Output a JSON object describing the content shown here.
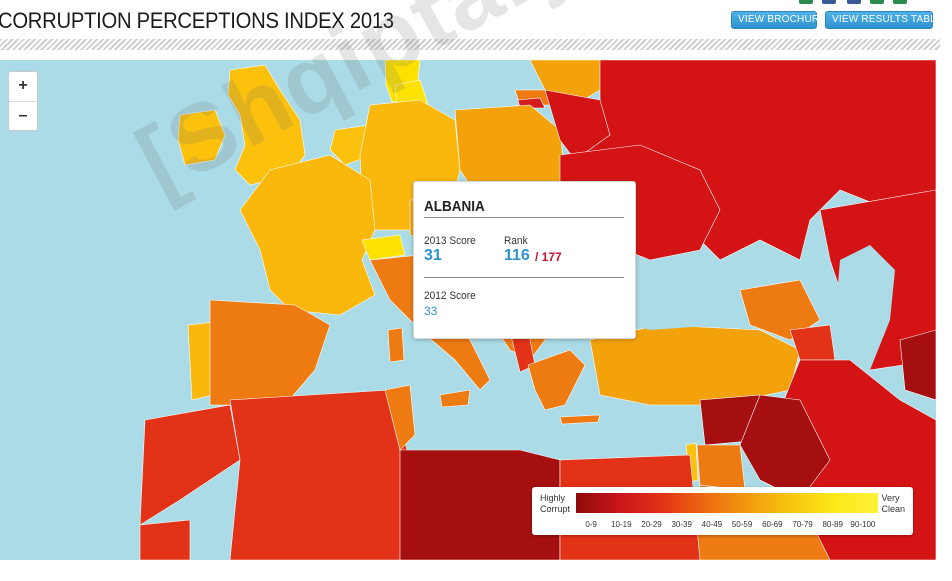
{
  "header": {
    "title": "CORRUPTION PERCEPTIONS INDEX 2013",
    "brochure_button": "VIEW BROCHURE",
    "results_button": "VIEW RESULTS TABLE"
  },
  "zoom": {
    "in_label": "+",
    "out_label": "–"
  },
  "tooltip": {
    "country": "ALBANIA",
    "score_2013_label": "2013 Score",
    "score_2013": "31",
    "rank_label": "Rank",
    "rank": "116",
    "rank_total": "/ 177",
    "score_2012_label": "2012 Score",
    "score_2012": "33"
  },
  "legend": {
    "left_label_line1": "Highly",
    "left_label_line2": "Corrupt",
    "right_label_line1": "Very",
    "right_label_line2": "Clean",
    "ranges": [
      "0-9",
      "10-19",
      "20-29",
      "30-39",
      "40-49",
      "50-59",
      "60-69",
      "70-79",
      "80-89",
      "90-100"
    ]
  },
  "watermark": "[Shqiptarja.com]",
  "colors": {
    "sea": "#aadbe6",
    "button": "#2e93cf",
    "score_value": "#2e93cf",
    "rank_total": "#c8102e"
  }
}
